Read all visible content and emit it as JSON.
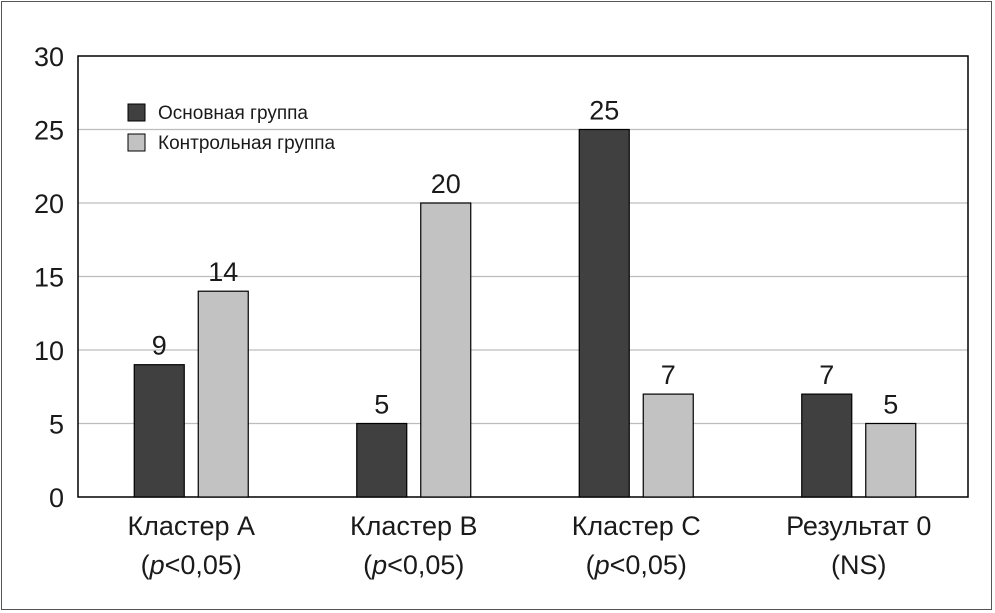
{
  "chart_data": {
    "type": "bar",
    "categories": [
      {
        "line1": "Кластер A",
        "p": "p",
        "rest": "<0,05)"
      },
      {
        "line1": "Кластер B",
        "p": "p",
        "rest": "<0,05)"
      },
      {
        "line1": "Кластер C",
        "p": "p",
        "rest": "<0,05)"
      },
      {
        "line1": "Результат 0",
        "p": "",
        "rest": "(NS)"
      }
    ],
    "series": [
      {
        "name": "Основная группа",
        "color": "#404040",
        "values": [
          9,
          5,
          25,
          7
        ]
      },
      {
        "name": "Контрольная группа",
        "color": "#c2c2c2",
        "values": [
          14,
          20,
          7,
          5
        ]
      }
    ],
    "ylim": [
      0,
      30
    ],
    "yticks": [
      0,
      5,
      10,
      15,
      20,
      25,
      30
    ],
    "grid": true,
    "legend": "top-left",
    "title": "",
    "xlabel": "",
    "ylabel": ""
  }
}
